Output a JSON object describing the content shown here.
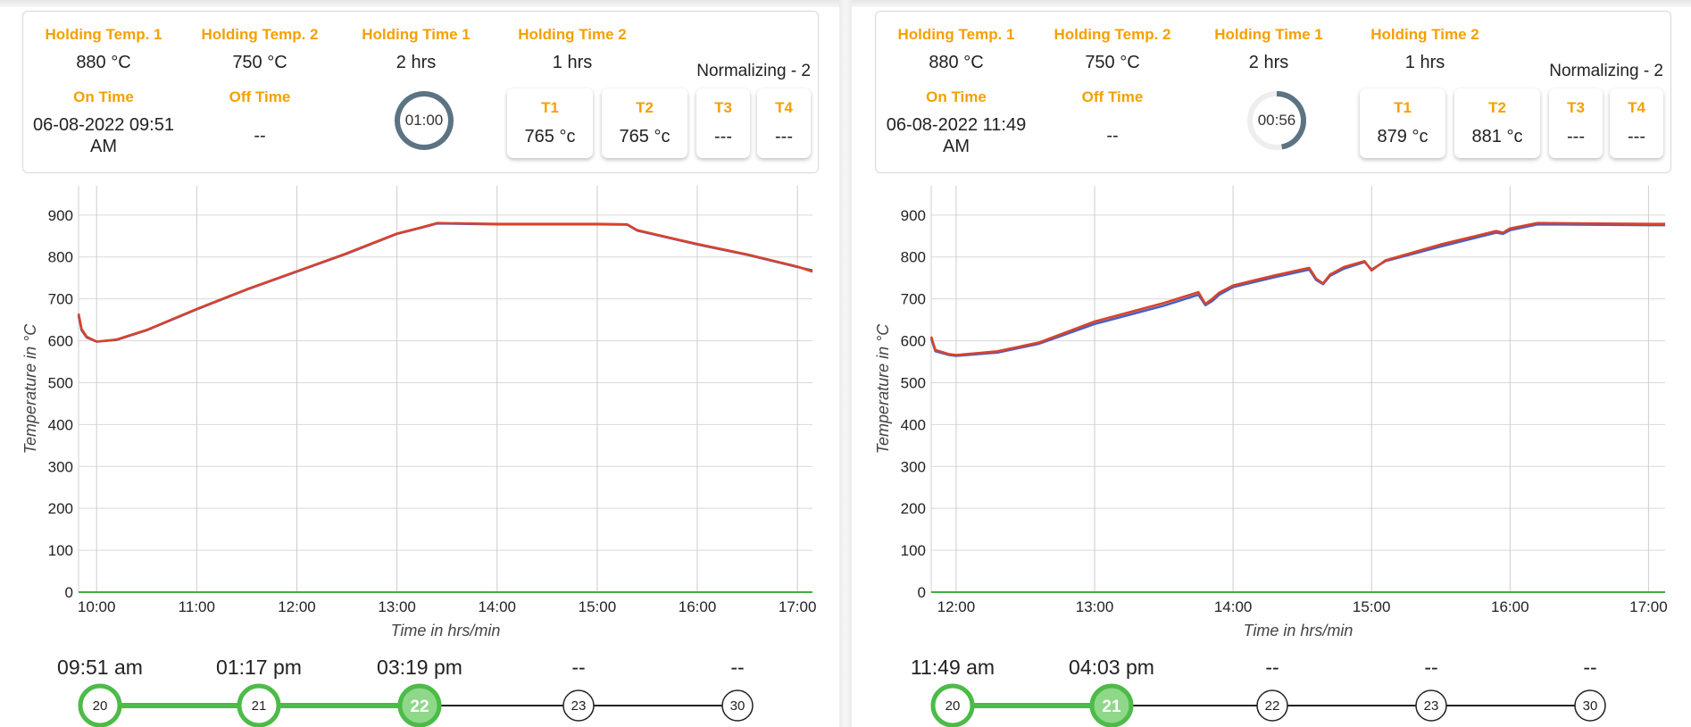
{
  "panels": [
    {
      "info": {
        "holding_temp_1": {
          "label": "Holding Temp. 1",
          "value": "880 °C"
        },
        "holding_temp_2": {
          "label": "Holding Temp. 2",
          "value": "750 °C"
        },
        "holding_time_1": {
          "label": "Holding Time 1",
          "value": "2 hrs"
        },
        "holding_time_2": {
          "label": "Holding Time 2",
          "value": "1 hrs"
        },
        "on_time": {
          "label": "On Time",
          "value": "06-08-2022 09:51 AM"
        },
        "off_time": {
          "label": "Off Time",
          "value": "--"
        },
        "mode": "Normalizing - 2",
        "timer": {
          "text": "01:00",
          "progress": 1.0
        }
      },
      "sensors": [
        {
          "label": "T1",
          "value": "765 °c"
        },
        {
          "label": "T2",
          "value": "765 °c"
        },
        {
          "label": "T3",
          "value": "---"
        },
        {
          "label": "T4",
          "value": "---"
        }
      ],
      "chart_data": {
        "type": "line",
        "xlabel": "Time in hrs/min",
        "ylabel": "Temperature in °C",
        "x_ticks": [
          "10:00",
          "11:00",
          "12:00",
          "13:00",
          "14:00",
          "15:00",
          "16:00",
          "17:00"
        ],
        "y_ticks": [
          "0",
          "100",
          "200",
          "300",
          "400",
          "500",
          "600",
          "700",
          "800",
          "900"
        ],
        "xlim": [
          9.82,
          17.15
        ],
        "ylim": [
          0,
          970
        ],
        "grid": true,
        "series": [
          {
            "color": "#4a5fc1",
            "points": [
              [
                9.82,
                660
              ],
              [
                9.85,
                625
              ],
              [
                9.9,
                608
              ],
              [
                10.0,
                598
              ],
              [
                10.2,
                602
              ],
              [
                10.5,
                625
              ],
              [
                11.0,
                675
              ],
              [
                11.5,
                722
              ],
              [
                12.0,
                765
              ],
              [
                12.5,
                808
              ],
              [
                13.0,
                855
              ],
              [
                13.25,
                870
              ],
              [
                13.4,
                880
              ],
              [
                14.0,
                878
              ],
              [
                15.0,
                878
              ],
              [
                15.3,
                877
              ],
              [
                15.4,
                863
              ],
              [
                15.6,
                852
              ],
              [
                16.0,
                830
              ],
              [
                16.5,
                805
              ],
              [
                17.0,
                776
              ],
              [
                17.15,
                768
              ]
            ]
          },
          {
            "color": "#d9432a",
            "points": [
              [
                9.82,
                665
              ],
              [
                9.85,
                628
              ],
              [
                9.9,
                610
              ],
              [
                10.0,
                598
              ],
              [
                10.2,
                603
              ],
              [
                10.5,
                626
              ],
              [
                11.0,
                676
              ],
              [
                11.5,
                723
              ],
              [
                12.0,
                766
              ],
              [
                12.5,
                809
              ],
              [
                13.0,
                856
              ],
              [
                13.25,
                871
              ],
              [
                13.4,
                881
              ],
              [
                14.0,
                879
              ],
              [
                15.0,
                879
              ],
              [
                15.3,
                878
              ],
              [
                15.4,
                864
              ],
              [
                15.6,
                853
              ],
              [
                16.0,
                831
              ],
              [
                16.5,
                806
              ],
              [
                17.0,
                777
              ],
              [
                17.15,
                765
              ]
            ]
          },
          {
            "color": "#3cb043",
            "points": [
              [
                9.82,
                0
              ],
              [
                17.15,
                0
              ]
            ]
          }
        ]
      },
      "timeline": [
        {
          "time": "09:51 am",
          "num": "20",
          "state": "done"
        },
        {
          "time": "01:17 pm",
          "num": "21",
          "state": "done"
        },
        {
          "time": "03:19 pm",
          "num": "22",
          "state": "current"
        },
        {
          "time": "--",
          "num": "23",
          "state": "pending"
        },
        {
          "time": "--",
          "num": "30",
          "state": "pending"
        }
      ]
    },
    {
      "info": {
        "holding_temp_1": {
          "label": "Holding Temp. 1",
          "value": "880 °C"
        },
        "holding_temp_2": {
          "label": "Holding Temp. 2",
          "value": "750 °C"
        },
        "holding_time_1": {
          "label": "Holding Time 1",
          "value": "2 hrs"
        },
        "holding_time_2": {
          "label": "Holding Time 2",
          "value": "1 hrs"
        },
        "on_time": {
          "label": "On Time",
          "value": "06-08-2022 11:49 AM"
        },
        "off_time": {
          "label": "Off Time",
          "value": "--"
        },
        "mode": "Normalizing - 2",
        "timer": {
          "text": "00:56",
          "progress": 0.47
        }
      },
      "sensors": [
        {
          "label": "T1",
          "value": "879 °c"
        },
        {
          "label": "T2",
          "value": "881 °c"
        },
        {
          "label": "T3",
          "value": "---"
        },
        {
          "label": "T4",
          "value": "---"
        }
      ],
      "chart_data": {
        "type": "line",
        "xlabel": "Time in hrs/min",
        "ylabel": "Temperature in °C",
        "x_ticks": [
          "12:00",
          "13:00",
          "14:00",
          "15:00",
          "16:00",
          "17:00"
        ],
        "y_ticks": [
          "0",
          "100",
          "200",
          "300",
          "400",
          "500",
          "600",
          "700",
          "800",
          "900"
        ],
        "xlim": [
          11.82,
          17.12
        ],
        "ylim": [
          0,
          970
        ],
        "grid": true,
        "series": [
          {
            "color": "#4a5fc1",
            "points": [
              [
                11.82,
                605
              ],
              [
                11.85,
                575
              ],
              [
                11.95,
                566
              ],
              [
                12.0,
                564
              ],
              [
                12.3,
                572
              ],
              [
                12.6,
                593
              ],
              [
                13.0,
                640
              ],
              [
                13.5,
                684
              ],
              [
                13.75,
                710
              ],
              [
                13.8,
                685
              ],
              [
                13.85,
                695
              ],
              [
                13.9,
                710
              ],
              [
                14.0,
                728
              ],
              [
                14.3,
                752
              ],
              [
                14.55,
                770
              ],
              [
                14.6,
                745
              ],
              [
                14.65,
                735
              ],
              [
                14.7,
                755
              ],
              [
                14.8,
                772
              ],
              [
                14.95,
                788
              ],
              [
                15.0,
                770
              ],
              [
                15.1,
                790
              ],
              [
                15.5,
                825
              ],
              [
                15.9,
                858
              ],
              [
                15.95,
                855
              ],
              [
                16.0,
                864
              ],
              [
                16.2,
                878
              ],
              [
                17.0,
                876
              ],
              [
                17.12,
                876
              ]
            ]
          },
          {
            "color": "#d9432a",
            "points": [
              [
                11.82,
                610
              ],
              [
                11.85,
                578
              ],
              [
                11.95,
                568
              ],
              [
                12.0,
                566
              ],
              [
                12.3,
                575
              ],
              [
                12.6,
                596
              ],
              [
                13.0,
                646
              ],
              [
                13.5,
                690
              ],
              [
                13.75,
                716
              ],
              [
                13.8,
                688
              ],
              [
                13.85,
                700
              ],
              [
                13.9,
                715
              ],
              [
                14.0,
                732
              ],
              [
                14.3,
                756
              ],
              [
                14.55,
                774
              ],
              [
                14.6,
                748
              ],
              [
                14.65,
                737
              ],
              [
                14.7,
                758
              ],
              [
                14.8,
                776
              ],
              [
                14.95,
                790
              ],
              [
                15.0,
                768
              ],
              [
                15.1,
                792
              ],
              [
                15.5,
                830
              ],
              [
                15.9,
                862
              ],
              [
                15.95,
                858
              ],
              [
                16.0,
                868
              ],
              [
                16.2,
                881
              ],
              [
                17.0,
                879
              ],
              [
                17.12,
                879
              ]
            ]
          },
          {
            "color": "#3cb043",
            "points": [
              [
                11.82,
                0
              ],
              [
                17.12,
                0
              ]
            ]
          }
        ]
      },
      "timeline": [
        {
          "time": "11:49 am",
          "num": "20",
          "state": "done"
        },
        {
          "time": "04:03 pm",
          "num": "21",
          "state": "current"
        },
        {
          "time": "--",
          "num": "22",
          "state": "pending"
        },
        {
          "time": "--",
          "num": "23",
          "state": "pending"
        },
        {
          "time": "--",
          "num": "30",
          "state": "pending"
        }
      ]
    }
  ]
}
